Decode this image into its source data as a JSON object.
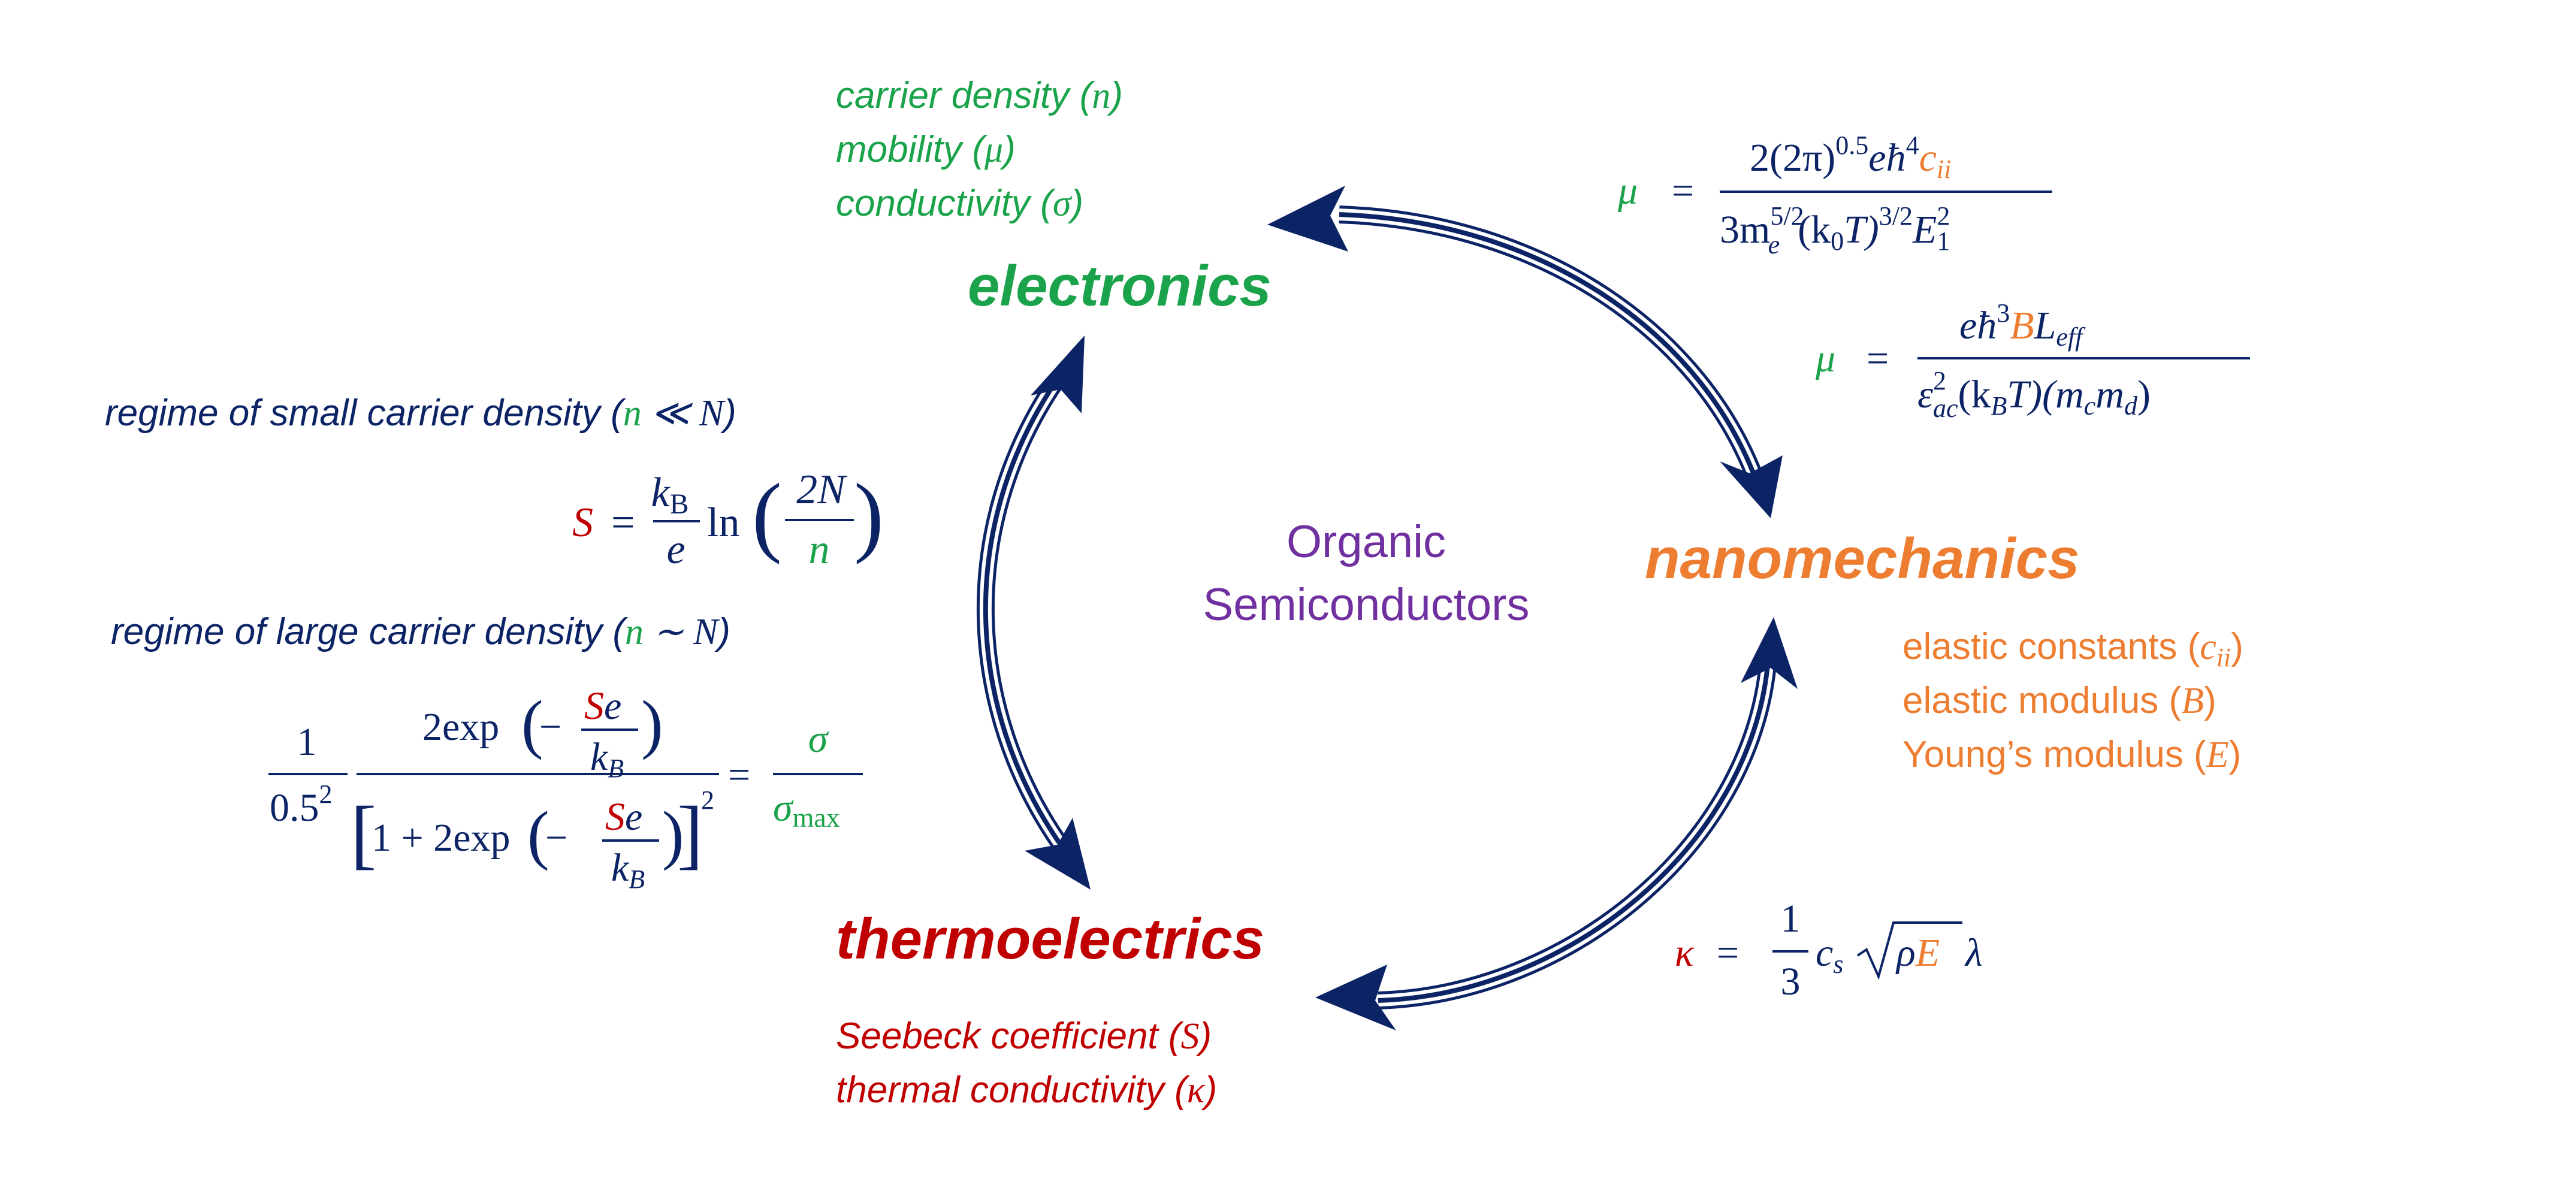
{
  "colors": {
    "navy": "#0c2466",
    "green": "#1aa34a",
    "orange": "#ed7d31",
    "red": "#c00000",
    "purple": "#7030a0"
  },
  "center": {
    "line1": "Organic",
    "line2": "Semiconductors"
  },
  "nodes": {
    "electronics": {
      "title": "electronics",
      "props": [
        "carrier density (",
        "n",
        ")",
        "mobility (",
        "μ",
        ")",
        "conductivity (",
        "σ",
        ")"
      ]
    },
    "nanomechanics": {
      "title": "nanomechanics",
      "props": [
        "elastic constants (",
        "c",
        "ii",
        ")",
        "elastic modulus (",
        "B",
        ")",
        "Young’s modulus (",
        "E",
        ")"
      ]
    },
    "thermoelectrics": {
      "title": "thermoelectrics",
      "props": [
        "Seebeck coefficient (",
        "S",
        ")",
        "thermal conductivity (",
        "κ",
        ")"
      ]
    }
  },
  "left": {
    "small_regime_pre": "regime of small carrier density (",
    "small_regime_n": "n",
    "small_regime_rel": " ≪ ",
    "small_regime_N": "N",
    "small_regime_post": ")",
    "large_regime_pre": "regime of large carrier density (",
    "large_regime_n": "n",
    "large_regime_rel": " ∼ ",
    "large_regime_N": "N",
    "large_regime_post": ")",
    "eq1": {
      "S": "S",
      "eq": "=",
      "kB": "k",
      "kB_sub": "B",
      "e": "e",
      "ln": "ln",
      "num": "2N",
      "den": "n"
    },
    "eq2": {
      "one": "1",
      "half": "0.5",
      "sq": "2",
      "num_pre": "2exp",
      "S": "S",
      "e": "e",
      "kB": "k",
      "kB_sub": "B",
      "den_pre": "1 + 2exp",
      "sq2": "2",
      "eq": "=",
      "sigma": "σ",
      "sigma_max": "σ",
      "max": "max"
    }
  },
  "right": {
    "mu1": {
      "mu": "μ",
      "eq": "=",
      "num_a": "2(2π)",
      "num_exp": "0.5",
      "num_b": "eħ",
      "num_exp2": "4",
      "c": "c",
      "c_sub": "ii",
      "den_a": "3m",
      "den_sup": "5/2",
      "den_sub": "e",
      "den_b": "(k",
      "den_sub2": "0",
      "den_c": "T)",
      "den_sup2": "3/2",
      "den_d": "E",
      "den_sub3": "1",
      "den_sup3": "2"
    },
    "mu2": {
      "mu": "μ",
      "eq": "=",
      "num_a": "eħ",
      "num_exp": "3",
      "B": "B",
      "L": "L",
      "L_sub": "eff",
      "den_a": "ε",
      "den_sup": "2",
      "den_sub": "ac",
      "den_b": "(k",
      "den_sub2": "B",
      "den_c": "T)(m",
      "den_sub3": "c",
      "den_d": "m",
      "den_sub4": "d",
      "den_e": ")"
    },
    "kappa": {
      "k": "κ",
      "eq": "=",
      "one": "1",
      "three": "3",
      "c": "c",
      "c_sub": "s",
      "rho": "ρ",
      "E": "E",
      "lambda": "λ"
    }
  }
}
